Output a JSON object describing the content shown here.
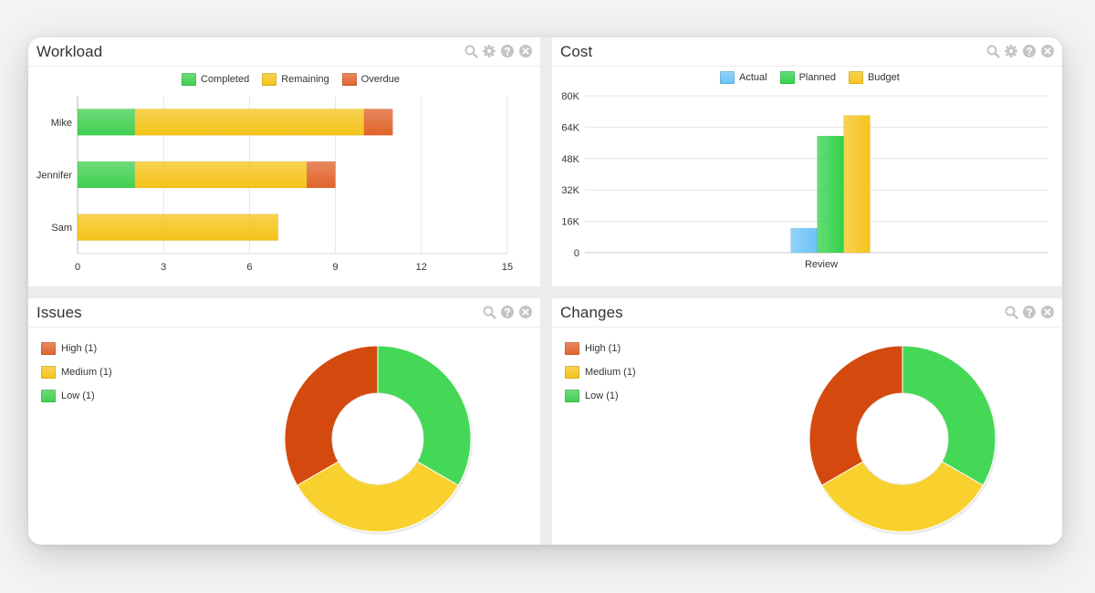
{
  "colors": {
    "completed": "#3fcf4f",
    "remaining": "#f5c318",
    "overdue": "#e0632a",
    "actual": "#6cc3f5",
    "planned": "#32d14a",
    "budget": "#f7c31d",
    "donut_high": "#d44a0e",
    "donut_medium": "#f9d12e",
    "donut_low": "#44d856"
  },
  "panels": {
    "workload": {
      "title": "Workload",
      "icons": [
        "search-icon",
        "gear-icon",
        "help-icon",
        "close-icon"
      ]
    },
    "cost": {
      "title": "Cost",
      "icons": [
        "search-icon",
        "gear-icon",
        "help-icon",
        "close-icon"
      ]
    },
    "issues": {
      "title": "Issues",
      "icons": [
        "search-icon",
        "help-icon",
        "close-icon"
      ],
      "legend": [
        "High (1)",
        "Medium (1)",
        "Low (1)"
      ]
    },
    "changes": {
      "title": "Changes",
      "icons": [
        "search-icon",
        "help-icon",
        "close-icon"
      ],
      "legend": [
        "High (1)",
        "Medium (1)",
        "Low (1)"
      ]
    }
  },
  "chart_data": [
    {
      "id": "workload",
      "type": "bar",
      "orientation": "horizontal",
      "stacked": true,
      "categories": [
        "Mike",
        "Jennifer",
        "Sam"
      ],
      "series": [
        {
          "name": "Completed",
          "values": [
            2,
            2,
            0
          ]
        },
        {
          "name": "Remaining",
          "values": [
            8,
            6,
            7
          ]
        },
        {
          "name": "Overdue",
          "values": [
            1,
            1,
            0
          ]
        }
      ],
      "xlim": [
        0,
        15
      ],
      "xticks": [
        "0",
        "3",
        "6",
        "9",
        "12",
        "15"
      ],
      "legend": "top",
      "grid": true
    },
    {
      "id": "cost",
      "type": "bar",
      "categories": [
        "Review"
      ],
      "series": [
        {
          "name": "Actual",
          "values": [
            12500
          ]
        },
        {
          "name": "Planned",
          "values": [
            59500
          ]
        },
        {
          "name": "Budget",
          "values": [
            70000
          ]
        }
      ],
      "ylim": [
        0,
        80000
      ],
      "yticks": [
        "0",
        "16K",
        "32K",
        "48K",
        "64K",
        "80K"
      ],
      "legend": "top",
      "grid": true
    },
    {
      "id": "issues",
      "type": "pie",
      "donut": true,
      "labels": [
        "Low",
        "Medium",
        "High"
      ],
      "values": [
        1,
        1,
        1
      ]
    },
    {
      "id": "changes",
      "type": "pie",
      "donut": true,
      "labels": [
        "Low",
        "Medium",
        "High"
      ],
      "values": [
        1,
        1,
        1
      ]
    }
  ]
}
